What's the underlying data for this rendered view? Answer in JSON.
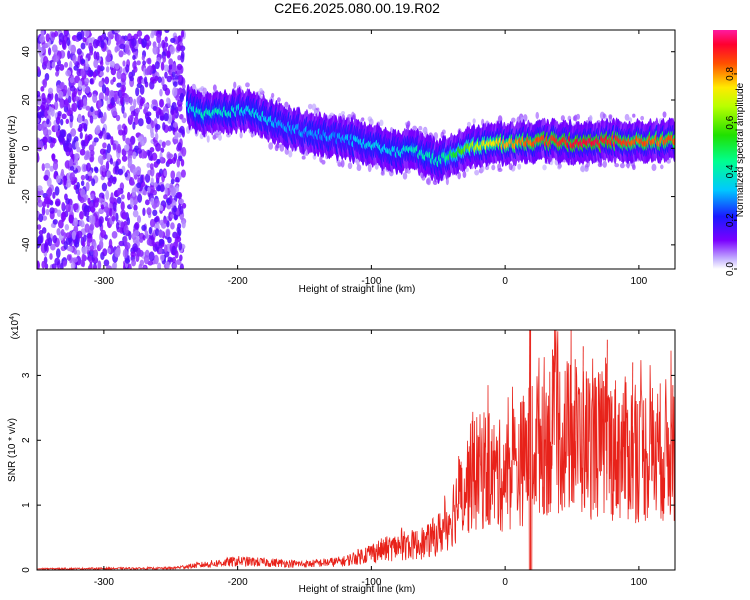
{
  "page": {
    "title": "C2E6.2025.080.00.19.R02"
  },
  "colors": {
    "snr_line": "#e8221a",
    "axis": "#000000",
    "background": "#ffffff"
  },
  "chart_data": [
    {
      "type": "heatmap",
      "title": "C2E6.2025.080.00.19.R02",
      "xlabel": "Height of straight line (km)",
      "ylabel": "Frequency (Hz)",
      "xlim": [
        -350,
        127
      ],
      "ylim": [
        -50,
        49
      ],
      "xticks": [
        -300,
        -200,
        -100,
        0,
        100
      ],
      "yticks": [
        -40,
        -20,
        0,
        20,
        40
      ],
      "colorbar": {
        "label": "Normalized spectral amplitude",
        "range": [
          0,
          0.98
        ],
        "ticks": [
          0.0,
          0.2,
          0.4,
          0.6,
          0.8
        ],
        "colormap": "rainbow (white-violet-blue-cyan-green-yellow-red-magenta)"
      },
      "noise_region_x": [
        -350,
        -240
      ],
      "ridge": {
        "x": [
          -237,
          -225,
          -210,
          -195,
          -180,
          -165,
          -150,
          -135,
          -120,
          -105,
          -90,
          -80,
          -70,
          -60,
          -50,
          -40,
          -30,
          -20,
          -10,
          0,
          20,
          40,
          60,
          80,
          100,
          127
        ],
        "frequency_hz": [
          17,
          14,
          15,
          16,
          13,
          9,
          7,
          5,
          4,
          2,
          0,
          -2,
          0,
          -3,
          -5,
          -3,
          0,
          1,
          2,
          2,
          3,
          3,
          2,
          3,
          3,
          3
        ],
        "peak_amplitude": [
          0.35,
          0.4,
          0.4,
          0.35,
          0.35,
          0.3,
          0.3,
          0.3,
          0.3,
          0.35,
          0.35,
          0.35,
          0.4,
          0.4,
          0.4,
          0.5,
          0.6,
          0.7,
          0.75,
          0.8,
          0.85,
          0.9,
          0.95,
          0.9,
          0.85,
          0.85
        ]
      }
    },
    {
      "type": "line",
      "xlabel": "Height of straight line (km)",
      "ylabel": "SNR (10 * v/v)",
      "y_multiplier_label": "(x10",
      "y_multiplier_exp": "4",
      "y_multiplier_close": ")",
      "xlim": [
        -350,
        127
      ],
      "ylim": [
        0,
        3.7
      ],
      "xticks": [
        -300,
        -200,
        -100,
        0,
        100
      ],
      "yticks": [
        0,
        1,
        2,
        3
      ],
      "series": [
        {
          "envelope_x": [
            -350,
            -250,
            -230,
            -200,
            -150,
            -120,
            -100,
            -80,
            -60,
            -45,
            -35,
            -25,
            -15,
            -5,
            0,
            10,
            18,
            25,
            40,
            60,
            80,
            100,
            115,
            127
          ],
          "envelope_y": [
            0.02,
            0.03,
            0.08,
            0.15,
            0.1,
            0.15,
            0.3,
            0.4,
            0.45,
            0.7,
            1.2,
            1.6,
            1.7,
            1.6,
            1.6,
            1.8,
            2.0,
            2.3,
            2.3,
            2.2,
            2.1,
            2.0,
            2.0,
            2.1
          ],
          "spikes": [
            {
              "x": -25,
              "y": 2.3
            },
            {
              "x": -20,
              "y": 2.05
            },
            {
              "x": 18,
              "y": 3.7
            },
            {
              "x": 35,
              "y": 3.4
            },
            {
              "x": 52,
              "y": 3.25
            },
            {
              "x": 58,
              "y": 3.45
            },
            {
              "x": 76,
              "y": 3.55
            },
            {
              "x": 95,
              "y": 3.2
            },
            {
              "x": 125,
              "y": 2.85
            }
          ],
          "dropout_x": 19
        }
      ]
    }
  ]
}
